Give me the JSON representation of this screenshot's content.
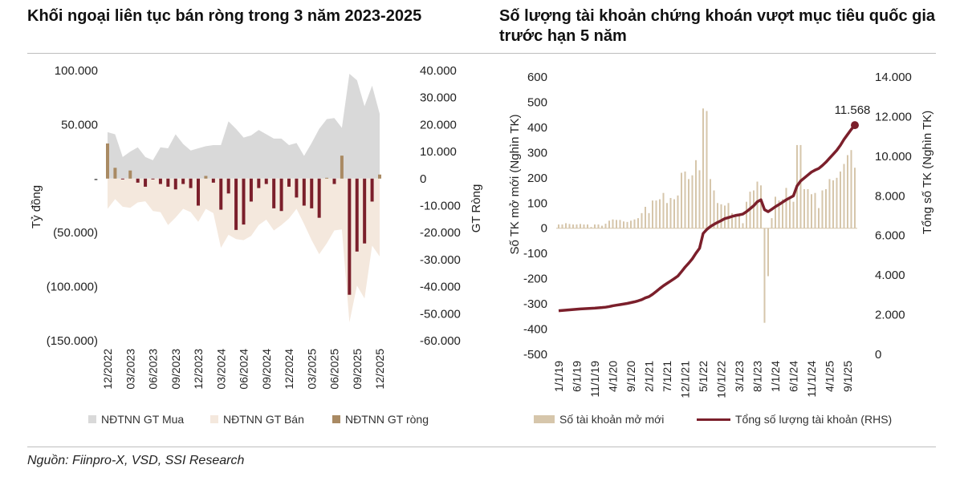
{
  "source": "Nguồn: Fiinpro-X, VSD, SSI Research",
  "chart_data": [
    {
      "type": "area+bar",
      "title": "Khối ngoại liên tục bán ròng trong 3 năm 2023-2025",
      "ylabel": "Tỷ đồng",
      "y2label": "GT Ròng",
      "ylim": [
        -150000,
        100000
      ],
      "y2lim": [
        -60000,
        40000
      ],
      "yticks": [
        "100.000",
        "50.000",
        "-",
        "(50.000)",
        "(100.000)",
        "(150.000)"
      ],
      "y2ticks": [
        "40.000",
        "30.000",
        "20.000",
        "10.000",
        "0",
        "-10.000",
        "-20.000",
        "-30.000",
        "-40.000",
        "-50.000",
        "-60.000"
      ],
      "xticks": [
        "12/2022",
        "03/2023",
        "06/2023",
        "09/2023",
        "12/2023",
        "03/2024",
        "06/2024",
        "09/2024",
        "12/2024",
        "03/2025",
        "06/2025",
        "09/2025",
        "12/2025"
      ],
      "colors": {
        "buy": "#d9d9d9",
        "sell": "#f4e8dd",
        "net_pos": "#a98a63",
        "net_neg": "#7b1f2b"
      },
      "legend": [
        "NĐTNN GT Mua",
        "NĐTNN GT Bán",
        "NĐTNN GT ròng"
      ],
      "legend_position": "bottom",
      "series": [
        {
          "name": "NĐTNN GT Mua",
          "axis": "left",
          "values": [
            43000,
            41000,
            20000,
            25000,
            29000,
            20000,
            17000,
            29000,
            28000,
            41000,
            32000,
            26000,
            28000,
            30000,
            31000,
            31000,
            53000,
            46000,
            38000,
            40000,
            45000,
            41000,
            37000,
            37000,
            31000,
            33000,
            21000,
            33000,
            46000,
            55000,
            56000,
            47000,
            97000,
            91000,
            67000,
            86000,
            60000
          ]
        },
        {
          "name": "NĐTNN GT Bán",
          "axis": "left",
          "values": [
            -28000,
            -19000,
            -26000,
            -27000,
            -22000,
            -21000,
            -30000,
            -31000,
            -43000,
            -36000,
            -28000,
            -31000,
            -40000,
            -28000,
            -32000,
            -64000,
            -52000,
            -56000,
            -57000,
            -53000,
            -43000,
            -38000,
            -48000,
            -43000,
            -37000,
            -28000,
            -42000,
            -57000,
            -70000,
            -60000,
            -48000,
            -47000,
            -133000,
            -99000,
            -111000,
            -62000,
            -72000
          ]
        },
        {
          "name": "NĐTNN GT ròng",
          "axis": "right",
          "values": [
            13000,
            4000,
            -200,
            3000,
            -1500,
            -3000,
            -200,
            -2000,
            -3000,
            -4000,
            -2000,
            -3500,
            -10000,
            1000,
            -1500,
            -11500,
            -5500,
            -19000,
            -17000,
            -8500,
            -3500,
            -2000,
            -11000,
            -12000,
            -3000,
            -7000,
            -10000,
            -11000,
            -14500,
            300,
            -2000,
            8500,
            -43000,
            -27000,
            -24000,
            -8500,
            1500
          ]
        }
      ]
    },
    {
      "type": "bar+line",
      "title": "Số lượng tài khoản chứng khoán vượt mục tiêu quốc gia trước hạn 5 năm",
      "ylabel": "Số TK mở mới (Nghìn TK)",
      "y2label": "Tổng số TK (Nghìn TK)",
      "ylim": [
        -500,
        600
      ],
      "y2lim": [
        0,
        14000
      ],
      "yticks": [
        "600",
        "500",
        "400",
        "300",
        "200",
        "100",
        "0",
        "-100",
        "-200",
        "-300",
        "-400",
        "-500"
      ],
      "y2ticks": [
        "14.000",
        "12.000",
        "10.000",
        "8.000",
        "6.000",
        "4.000",
        "2.000",
        "0"
      ],
      "xticks": [
        "1/1/19",
        "6/1/19",
        "11/1/19",
        "4/1/20",
        "9/1/20",
        "2/1/21",
        "7/1/21",
        "12/1/21",
        "5/1/22",
        "10/1/22",
        "3/1/23",
        "8/1/23",
        "1/1/24",
        "6/1/24",
        "11/1/24",
        "4/1/25",
        "9/1/25"
      ],
      "annotation": "11.568",
      "colors": {
        "bars": "#d6c6ab",
        "line": "#7b1f2b"
      },
      "legend": [
        "Số tài khoản mở mới",
        "Tổng số lượng tài khoản (RHS)"
      ],
      "legend_position": "bottom",
      "series": [
        {
          "name": "Số tài khoản mở mới",
          "axis": "left",
          "values": [
            15,
            15,
            20,
            17,
            15,
            15,
            17,
            15,
            15,
            5,
            15,
            15,
            10,
            18,
            30,
            35,
            33,
            33,
            27,
            25,
            30,
            35,
            40,
            60,
            85,
            60,
            110,
            110,
            115,
            140,
            100,
            120,
            115,
            130,
            220,
            225,
            195,
            210,
            270,
            230,
            475,
            465,
            195,
            150,
            100,
            95,
            90,
            100,
            60,
            55,
            50,
            20,
            105,
            145,
            150,
            185,
            170,
            -375,
            -190,
            40,
            125,
            110,
            115,
            160,
            115,
            105,
            330,
            330,
            155,
            155,
            135,
            140,
            80,
            150,
            155,
            195,
            190,
            200,
            225,
            255,
            290,
            310,
            240
          ]
        },
        {
          "name": "Tổng số lượng tài khoản (RHS)",
          "axis": "right",
          "values": [
            2200,
            2215,
            2230,
            2245,
            2260,
            2275,
            2290,
            2300,
            2310,
            2320,
            2330,
            2345,
            2360,
            2380,
            2410,
            2450,
            2480,
            2510,
            2540,
            2570,
            2610,
            2650,
            2700,
            2760,
            2850,
            2910,
            3030,
            3170,
            3320,
            3460,
            3580,
            3700,
            3820,
            3950,
            4170,
            4400,
            4600,
            4820,
            5100,
            5350,
            6100,
            6300,
            6450,
            6560,
            6660,
            6750,
            6850,
            6900,
            6960,
            7010,
            7040,
            7080,
            7200,
            7350,
            7500,
            7700,
            7800,
            7300,
            7200,
            7320,
            7450,
            7560,
            7680,
            7800,
            7900,
            8000,
            8500,
            8750,
            8900,
            9050,
            9200,
            9300,
            9380,
            9530,
            9700,
            9900,
            10100,
            10300,
            10550,
            10850,
            11100,
            11350,
            11568
          ]
        }
      ]
    }
  ]
}
